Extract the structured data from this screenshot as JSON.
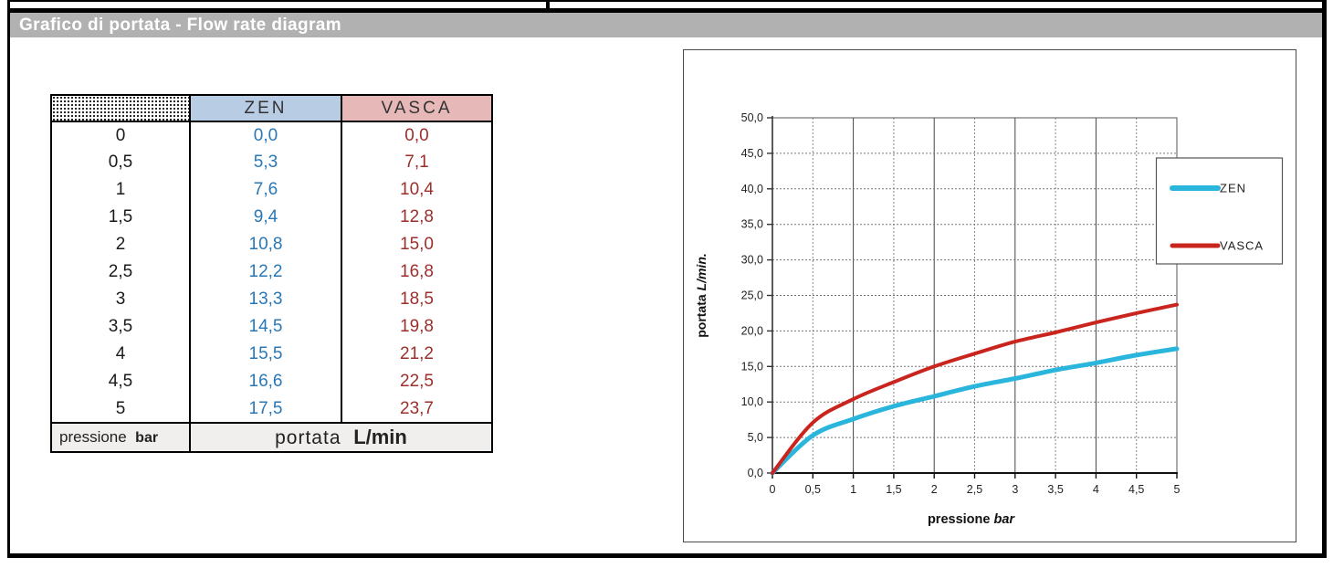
{
  "page": {
    "header_title": "Grafico di portata - Flow rate diagram"
  },
  "table": {
    "columns": [
      "",
      "ZEN",
      "VASCA"
    ],
    "rows": [
      [
        "0",
        "0,0",
        "0,0"
      ],
      [
        "0,5",
        "5,3",
        "7,1"
      ],
      [
        "1",
        "7,6",
        "10,4"
      ],
      [
        "1,5",
        "9,4",
        "12,8"
      ],
      [
        "2",
        "10,8",
        "15,0"
      ],
      [
        "2,5",
        "12,2",
        "16,8"
      ],
      [
        "3",
        "13,3",
        "18,5"
      ],
      [
        "3,5",
        "14,5",
        "19,8"
      ],
      [
        "4",
        "15,5",
        "21,2"
      ],
      [
        "4,5",
        "16,6",
        "22,5"
      ],
      [
        "5",
        "17,5",
        "23,7"
      ]
    ],
    "footer": {
      "left_label": "pressione",
      "left_unit": "bar",
      "right_label": "portata",
      "right_unit": "L/min"
    },
    "colors": {
      "zen_header_bg": "#b8cce4",
      "vasca_header_bg": "#e6b8b7",
      "zen_text": "#2878b8",
      "vasca_text": "#9c2f2c"
    }
  },
  "chart_data": {
    "type": "line",
    "x": [
      0,
      0.5,
      1,
      1.5,
      2,
      2.5,
      3,
      3.5,
      4,
      4.5,
      5
    ],
    "series": [
      {
        "name": "ZEN",
        "color": "#2ab6dc",
        "width": 5,
        "values": [
          0,
          5.3,
          7.6,
          9.4,
          10.8,
          12.2,
          13.3,
          14.5,
          15.5,
          16.6,
          17.5
        ]
      },
      {
        "name": "VASCA",
        "color": "#c9241d",
        "width": 4,
        "values": [
          0,
          7.1,
          10.4,
          12.8,
          15.0,
          16.8,
          18.5,
          19.8,
          21.2,
          22.5,
          23.7
        ]
      }
    ],
    "title": "",
    "xlabel": "pressione",
    "xlabel_unit": "bar",
    "ylabel": "portata",
    "ylabel_unit": "L/min.",
    "xlim": [
      0,
      5
    ],
    "ylim": [
      0,
      50
    ],
    "x_tick_step": 0.5,
    "y_tick_step": 5,
    "x_tick_labels": [
      "0",
      "0,5",
      "1",
      "1,5",
      "2",
      "2,5",
      "3",
      "3,5",
      "4",
      "4,5",
      "5"
    ],
    "y_tick_labels": [
      "0,0",
      "5,0",
      "10,0",
      "15,0",
      "20,0",
      "25,0",
      "30,0",
      "35,0",
      "40,0",
      "45,0",
      "50,0"
    ],
    "grid": true,
    "legend_position": "right-overlapping-plot"
  }
}
